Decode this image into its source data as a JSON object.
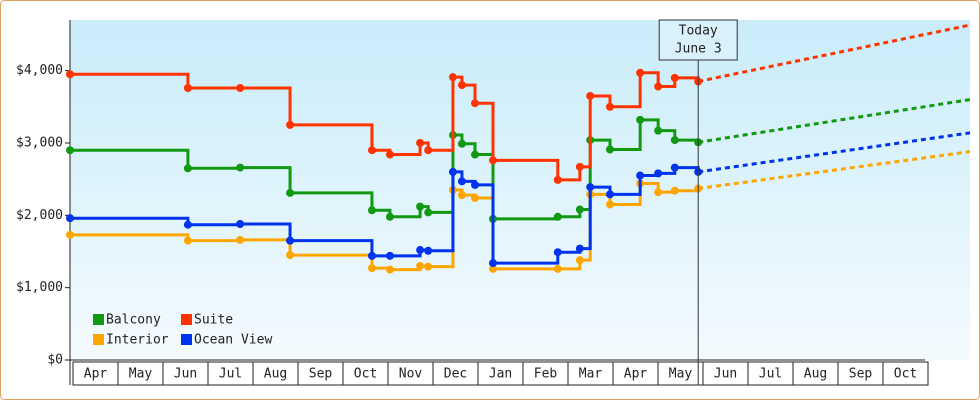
{
  "chart_data": {
    "type": "step-line",
    "xlim": [
      0,
      20
    ],
    "xticks": [
      {
        "value": 0.5,
        "label": "Apr"
      },
      {
        "value": 1.5,
        "label": "May"
      },
      {
        "value": 2.5,
        "label": "Jun"
      },
      {
        "value": 3.5,
        "label": "Jul"
      },
      {
        "value": 4.5,
        "label": "Aug"
      },
      {
        "value": 5.5,
        "label": "Sep"
      },
      {
        "value": 6.5,
        "label": "Oct"
      },
      {
        "value": 7.5,
        "label": "Nov"
      },
      {
        "value": 8.5,
        "label": "Dec"
      },
      {
        "value": 9.5,
        "label": "Jan"
      },
      {
        "value": 10.5,
        "label": "Feb"
      },
      {
        "value": 11.5,
        "label": "Mar"
      },
      {
        "value": 12.5,
        "label": "Apr"
      },
      {
        "value": 13.5,
        "label": "May"
      },
      {
        "value": 14.5,
        "label": "Jun"
      },
      {
        "value": 15.5,
        "label": "Jul"
      },
      {
        "value": 16.5,
        "label": "Aug"
      },
      {
        "value": 17.5,
        "label": "Sep"
      },
      {
        "value": 18.5,
        "label": "Oct"
      }
    ],
    "ylim": [
      0,
      4700
    ],
    "yticks": [
      {
        "value": 0,
        "label": "$0"
      },
      {
        "value": 1000,
        "label": "$1,000"
      },
      {
        "value": 2000,
        "label": "$2,000"
      },
      {
        "value": 3000,
        "label": "$3,000"
      },
      {
        "value": 4000,
        "label": "$4,000"
      }
    ],
    "x": [
      0,
      2.62,
      3.78,
      4.89,
      6.71,
      7.11,
      7.78,
      7.96,
      8.51,
      8.71,
      9.0,
      9.4,
      10.84,
      11.33,
      11.56,
      12.0,
      12.67,
      13.07,
      13.44,
      13.96
    ],
    "annotation": {
      "lines": [
        "Today",
        "June 3"
      ],
      "x": 13.96
    },
    "legend": "lower left",
    "series": [
      {
        "name": "Balcony",
        "color": "#119911",
        "values": [
          2900,
          2650,
          2660,
          2310,
          2070,
          1980,
          2120,
          2040,
          3110,
          2990,
          2840,
          1950,
          1980,
          2080,
          3040,
          2910,
          3320,
          3170,
          3040,
          3010
        ],
        "forecast_values": [
          3010,
          3600
        ]
      },
      {
        "name": "Suite",
        "color": "#ff3300",
        "values": [
          3950,
          3760,
          3760,
          3250,
          2900,
          2840,
          3000,
          2900,
          3910,
          3800,
          3550,
          2760,
          2490,
          2670,
          3650,
          3500,
          3970,
          3780,
          3900,
          3850
        ],
        "forecast_values": [
          3850,
          4630
        ]
      },
      {
        "name": "Interior",
        "color": "#ffa500",
        "values": [
          1730,
          1650,
          1660,
          1450,
          1270,
          1250,
          1300,
          1290,
          2350,
          2280,
          2240,
          1260,
          1260,
          1380,
          2290,
          2150,
          2440,
          2320,
          2340,
          2370
        ],
        "forecast_values": [
          2370,
          2880
        ]
      },
      {
        "name": "Ocean View",
        "color": "#0033ee",
        "values": [
          1960,
          1870,
          1880,
          1650,
          1440,
          1440,
          1520,
          1510,
          2600,
          2470,
          2420,
          1340,
          1490,
          1540,
          2390,
          2290,
          2550,
          2580,
          2660,
          2600
        ],
        "forecast_values": [
          2600,
          3140
        ]
      }
    ]
  }
}
